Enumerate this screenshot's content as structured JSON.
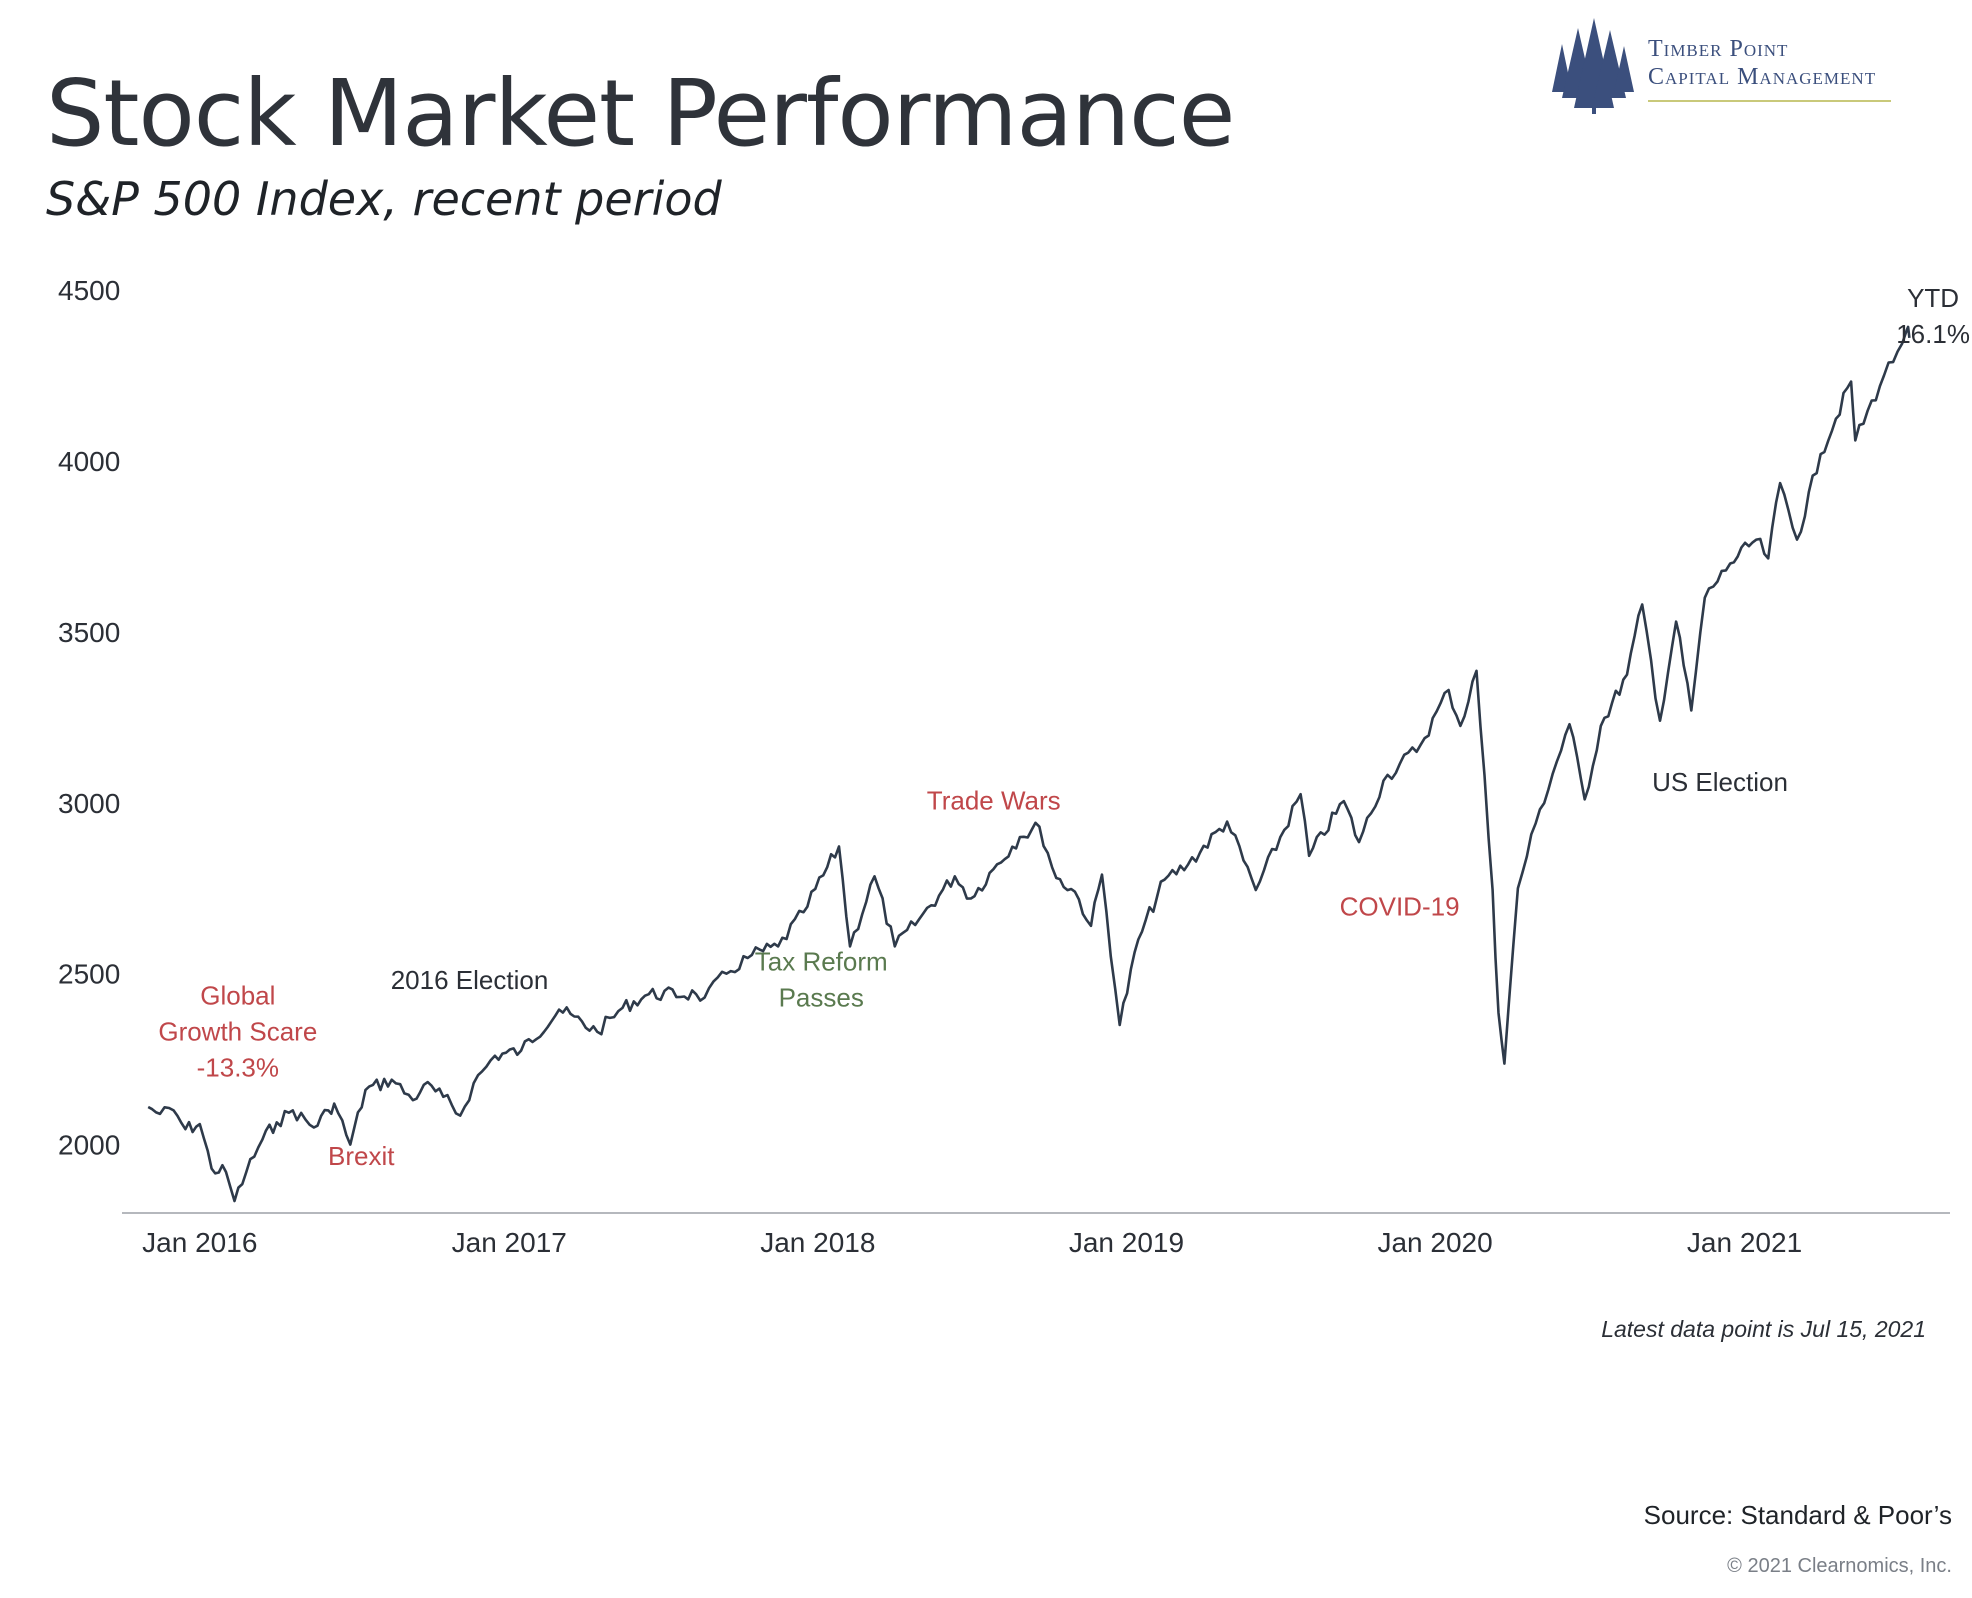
{
  "header": {
    "title": "Stock Market Performance",
    "subtitle": "S&P 500 Index, recent period"
  },
  "logo": {
    "line1": "Timber Point",
    "line2": "Capital Management",
    "icon": "pine-trees-icon",
    "color": "#3b4f7d"
  },
  "footer": {
    "latest": "Latest data point is Jul 15, 2021",
    "source": "Source: Standard & Poor’s",
    "copyright": "© 2021 Clearnomics, Inc."
  },
  "colors": {
    "line": "#2e3a4a",
    "negative": "#c0474a",
    "positive": "#5a7a4f",
    "neutral": "#2b2f36"
  },
  "chart_data": {
    "type": "line",
    "title": "Stock Market Performance",
    "subtitle": "S&P 500 Index, recent period",
    "ylim": [
      1800,
      4500
    ],
    "yticks": [
      2000,
      2500,
      3000,
      3500,
      4000,
      4500
    ],
    "xlim": [
      "2015-10-01",
      "2021-09-01"
    ],
    "xticks": [
      {
        "date": "2016-01-01",
        "label": "Jan 2016"
      },
      {
        "date": "2017-01-01",
        "label": "Jan 2017"
      },
      {
        "date": "2018-01-01",
        "label": "Jan 2018"
      },
      {
        "date": "2019-01-01",
        "label": "Jan 2019"
      },
      {
        "date": "2020-01-01",
        "label": "Jan 2020"
      },
      {
        "date": "2021-01-01",
        "label": "Jan 2021"
      }
    ],
    "grid": false,
    "series": [
      {
        "name": "",
        "points": [
          [
            "2015-11-01",
            2110
          ],
          [
            "2015-11-15",
            2090
          ],
          [
            "2015-12-01",
            2100
          ],
          [
            "2015-12-15",
            2045
          ],
          [
            "2016-01-01",
            2060
          ],
          [
            "2016-01-15",
            1930
          ],
          [
            "2016-02-01",
            1920
          ],
          [
            "2016-02-11",
            1835
          ],
          [
            "2016-02-25",
            1920
          ],
          [
            "2016-03-15",
            2015
          ],
          [
            "2016-04-01",
            2065
          ],
          [
            "2016-04-20",
            2100
          ],
          [
            "2016-05-15",
            2050
          ],
          [
            "2016-06-01",
            2100
          ],
          [
            "2016-06-08",
            2120
          ],
          [
            "2016-06-27",
            2000
          ],
          [
            "2016-07-15",
            2160
          ],
          [
            "2016-08-15",
            2190
          ],
          [
            "2016-09-09",
            2130
          ],
          [
            "2016-09-22",
            2175
          ],
          [
            "2016-10-15",
            2140
          ],
          [
            "2016-11-04",
            2085
          ],
          [
            "2016-11-20",
            2180
          ],
          [
            "2016-12-15",
            2260
          ],
          [
            "2017-01-15",
            2275
          ],
          [
            "2017-03-01",
            2395
          ],
          [
            "2017-04-15",
            2330
          ],
          [
            "2017-05-15",
            2400
          ],
          [
            "2017-06-15",
            2440
          ],
          [
            "2017-08-10",
            2440
          ],
          [
            "2017-08-20",
            2430
          ],
          [
            "2017-09-15",
            2500
          ],
          [
            "2017-10-15",
            2555
          ],
          [
            "2017-11-15",
            2580
          ],
          [
            "2017-12-15",
            2680
          ],
          [
            "2018-01-26",
            2872
          ],
          [
            "2018-02-08",
            2580
          ],
          [
            "2018-03-09",
            2785
          ],
          [
            "2018-04-02",
            2580
          ],
          [
            "2018-05-01",
            2660
          ],
          [
            "2018-06-12",
            2785
          ],
          [
            "2018-07-01",
            2720
          ],
          [
            "2018-08-01",
            2820
          ],
          [
            "2018-08-28",
            2900
          ],
          [
            "2018-09-20",
            2930
          ],
          [
            "2018-10-10",
            2780
          ],
          [
            "2018-11-01",
            2740
          ],
          [
            "2018-11-20",
            2640
          ],
          [
            "2018-12-03",
            2790
          ],
          [
            "2018-12-24",
            2350
          ],
          [
            "2019-01-15",
            2600
          ],
          [
            "2019-02-15",
            2775
          ],
          [
            "2019-03-15",
            2820
          ],
          [
            "2019-04-30",
            2945
          ],
          [
            "2019-06-03",
            2745
          ],
          [
            "2019-07-26",
            3025
          ],
          [
            "2019-08-05",
            2845
          ],
          [
            "2019-09-15",
            3005
          ],
          [
            "2019-10-03",
            2885
          ],
          [
            "2019-11-01",
            3065
          ],
          [
            "2019-12-15",
            3170
          ],
          [
            "2020-01-17",
            3330
          ],
          [
            "2020-01-31",
            3225
          ],
          [
            "2020-02-19",
            3386
          ],
          [
            "2020-03-09",
            2745
          ],
          [
            "2020-03-16",
            2385
          ],
          [
            "2020-03-23",
            2237
          ],
          [
            "2020-04-08",
            2750
          ],
          [
            "2020-04-29",
            2940
          ],
          [
            "2020-06-08",
            3230
          ],
          [
            "2020-06-26",
            3010
          ],
          [
            "2020-07-15",
            3225
          ],
          [
            "2020-08-15",
            3375
          ],
          [
            "2020-09-02",
            3580
          ],
          [
            "2020-09-23",
            3240
          ],
          [
            "2020-10-12",
            3530
          ],
          [
            "2020-10-30",
            3270
          ],
          [
            "2020-11-15",
            3600
          ],
          [
            "2020-12-15",
            3700
          ],
          [
            "2021-01-15",
            3770
          ],
          [
            "2021-01-29",
            3715
          ],
          [
            "2021-02-12",
            3935
          ],
          [
            "2021-03-04",
            3770
          ],
          [
            "2021-04-01",
            4020
          ],
          [
            "2021-05-07",
            4232
          ],
          [
            "2021-05-12",
            4060
          ],
          [
            "2021-06-15",
            4250
          ],
          [
            "2021-07-01",
            4320
          ],
          [
            "2021-07-12",
            4384
          ],
          [
            "2021-07-15",
            4360
          ]
        ]
      }
    ],
    "annotations": [
      {
        "lines": [
          "Global",
          "Growth Scare",
          "-13.3%"
        ],
        "x": "2016-02-15",
        "y": 2410,
        "color": "#c0474a"
      },
      {
        "lines": [
          "Brexit"
        ],
        "x": "2016-07-10",
        "y": 1940,
        "color": "#c0474a"
      },
      {
        "lines": [
          "2016 Election"
        ],
        "x": "2016-11-15",
        "y": 2455,
        "color": "#2b2f36"
      },
      {
        "lines": [
          "Tax Reform",
          "Passes"
        ],
        "x": "2018-01-05",
        "y": 2510,
        "color": "#5a7a4f"
      },
      {
        "lines": [
          "Trade Wars"
        ],
        "x": "2018-07-28",
        "y": 2980,
        "color": "#c0474a"
      },
      {
        "lines": [
          "COVID-19"
        ],
        "x": "2019-11-20",
        "y": 2670,
        "color": "#c0474a"
      },
      {
        "lines": [
          "US Election"
        ],
        "x": "2020-12-03",
        "y": 3035,
        "color": "#2b2f36"
      },
      {
        "lines": [
          "YTD",
          "16.1%"
        ],
        "x": "2021-08-12",
        "y": 4450,
        "color": "#2b2f36"
      }
    ]
  }
}
